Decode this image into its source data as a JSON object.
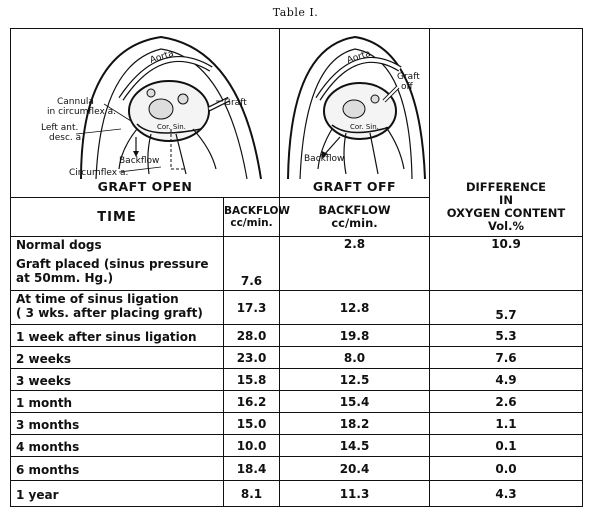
{
  "caption": "Table I.",
  "figures": {
    "left": {
      "title": "GRAFT OPEN",
      "labels": {
        "aorta": "Aorta",
        "cannula": "Cannula",
        "cannula2": "in circumflex a.",
        "left_ant": "Left ant.",
        "left_ant2": "desc. a.",
        "graft": "Graft",
        "cor_sin": "Cor. Sin.",
        "backflow": "Backflow",
        "circumflex": "Circumflex a."
      }
    },
    "right": {
      "title": "GRAFT OFF",
      "labels": {
        "aorta": "Aorta",
        "graft": "Graft",
        "off": "off",
        "cor_sin": "Cor. Sin.",
        "backflow": "Backflow"
      }
    }
  },
  "headers": {
    "time": "TIME",
    "backflow_open": "BACKFLOW",
    "backflow_open_unit": "cc/min.",
    "backflow_off": "BACKFLOW",
    "backflow_off_unit": "cc/min.",
    "difference": [
      "DIFFERENCE",
      "IN",
      "OXYGEN CONTENT",
      "Vol.%"
    ]
  },
  "rows": [
    {
      "time": "Normal dogs",
      "open": "",
      "off": "2.8",
      "diff": "10.9"
    },
    {
      "time": "Graft placed (sinus pressure",
      "time2": "at  50mm. Hg.)",
      "open": "7.6",
      "off": "",
      "diff": ""
    },
    {
      "time": "At time of sinus ligation",
      "time2": "( 3 wks. after placing graft)",
      "open": "17.3",
      "off": "12.8",
      "diff": "5.7"
    },
    {
      "time": "1 week after sinus ligation",
      "open": "28.0",
      "off": "19.8",
      "diff": "5.3"
    },
    {
      "time": "2 weeks",
      "open": "23.0",
      "off": "8.0",
      "diff": "7.6"
    },
    {
      "time": "3 weeks",
      "open": "15.8",
      "off": "12.5",
      "diff": "4.9"
    },
    {
      "time": "1 month",
      "open": "16.2",
      "off": "15.4",
      "diff": "2.6"
    },
    {
      "time": "3 months",
      "open": "15.0",
      "off": "18.2",
      "diff": "1.1"
    },
    {
      "time": "4 months",
      "open": "10.0",
      "off": "14.5",
      "diff": "0.1"
    },
    {
      "time": "6 months",
      "open": "18.4",
      "off": "20.4",
      "diff": "0.0"
    },
    {
      "time": "1 year",
      "open": "8.1",
      "off": "11.3",
      "diff": "4.3"
    }
  ]
}
